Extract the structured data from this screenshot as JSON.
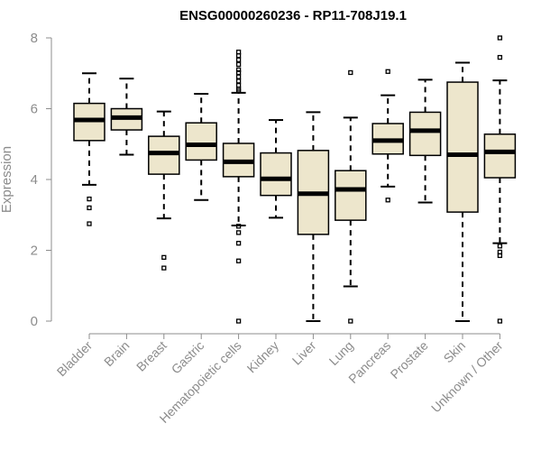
{
  "chart_data": {
    "type": "boxplot",
    "title": "ENSG00000260236 - RP11-708J19.1",
    "xlabel": "",
    "ylabel": "Expression",
    "ylim": [
      0,
      8
    ],
    "yticks": [
      0,
      2,
      4,
      6,
      8
    ],
    "grid": false,
    "colors": {
      "box_fill": "#ede6cc",
      "box_stroke": "#000000",
      "axis": "#8c8c8c",
      "title": "#000000"
    },
    "boxes": [
      {
        "category": "Bladder",
        "whisker_low": 3.85,
        "q1": 5.1,
        "median": 5.68,
        "q3": 6.15,
        "whisker_high": 7.0,
        "outliers": [
          3.45,
          3.2,
          2.75
        ]
      },
      {
        "category": "Brain",
        "whisker_low": 4.7,
        "q1": 5.4,
        "median": 5.75,
        "q3": 6.0,
        "whisker_high": 6.85,
        "outliers": []
      },
      {
        "category": "Breast",
        "whisker_low": 2.9,
        "q1": 4.15,
        "median": 4.75,
        "q3": 5.22,
        "whisker_high": 5.92,
        "outliers": [
          1.8,
          1.5
        ]
      },
      {
        "category": "Gastric",
        "whisker_low": 3.42,
        "q1": 4.55,
        "median": 4.98,
        "q3": 5.6,
        "whisker_high": 6.42,
        "outliers": []
      },
      {
        "category": "Hematopoietic cells",
        "whisker_low": 2.7,
        "q1": 4.08,
        "median": 4.5,
        "q3": 5.02,
        "whisker_high": 6.45,
        "outliers": [
          7.6,
          7.5,
          7.38,
          7.25,
          7.1,
          7.02,
          6.9,
          6.78,
          6.66,
          6.55,
          6.5,
          2.68,
          2.5,
          2.2,
          1.7,
          0.0
        ]
      },
      {
        "category": "Kidney",
        "whisker_low": 2.92,
        "q1": 3.55,
        "median": 4.02,
        "q3": 4.75,
        "whisker_high": 5.68,
        "outliers": []
      },
      {
        "category": "Liver",
        "whisker_low": 0.0,
        "q1": 2.45,
        "median": 3.6,
        "q3": 4.82,
        "whisker_high": 5.9,
        "outliers": []
      },
      {
        "category": "Lung",
        "whisker_low": 0.98,
        "q1": 2.85,
        "median": 3.72,
        "q3": 4.25,
        "whisker_high": 5.75,
        "outliers": [
          7.02,
          0.0
        ]
      },
      {
        "category": "Pancreas",
        "whisker_low": 3.8,
        "q1": 4.72,
        "median": 5.1,
        "q3": 5.58,
        "whisker_high": 6.38,
        "outliers": [
          7.05,
          3.42
        ]
      },
      {
        "category": "Prostate",
        "whisker_low": 3.35,
        "q1": 4.68,
        "median": 5.38,
        "q3": 5.9,
        "whisker_high": 6.82,
        "outliers": []
      },
      {
        "category": "Skin",
        "whisker_low": 0.0,
        "q1": 3.08,
        "median": 4.7,
        "q3": 6.75,
        "whisker_high": 7.3,
        "outliers": []
      },
      {
        "category": "Unknown / Other",
        "whisker_low": 2.2,
        "q1": 4.05,
        "median": 4.78,
        "q3": 5.28,
        "whisker_high": 6.8,
        "outliers": [
          8.0,
          7.45,
          2.12,
          1.95,
          1.85,
          0.0
        ]
      }
    ]
  }
}
